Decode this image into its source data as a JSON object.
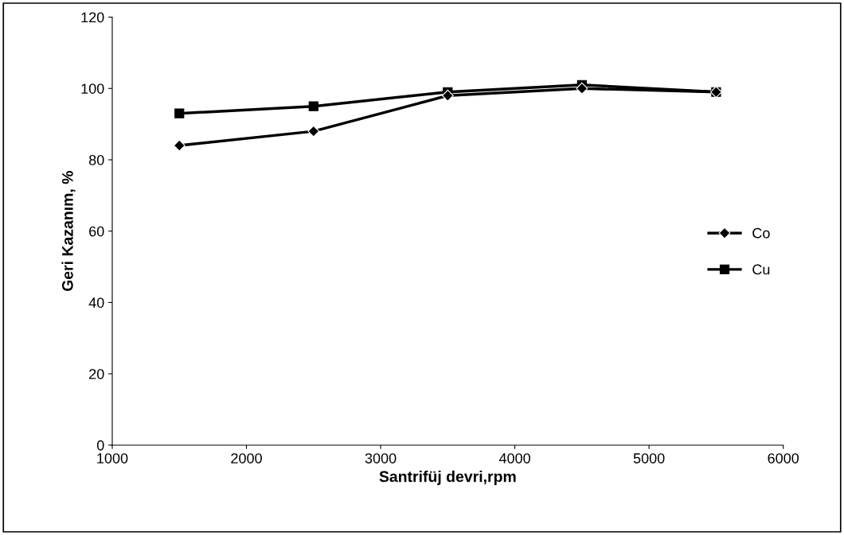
{
  "chart_data": {
    "type": "line",
    "xlabel": "Santrifüj devri,rpm",
    "ylabel": "Geri Kazanım, %",
    "x": [
      1500,
      2500,
      3500,
      4500,
      5500
    ],
    "series": [
      {
        "name": "Co",
        "color": "#000000",
        "marker": "diamond",
        "values": [
          84,
          88,
          98,
          100,
          99
        ]
      },
      {
        "name": "Cu",
        "color": "#000000",
        "marker": "square",
        "values": [
          93,
          95,
          99,
          101,
          99
        ]
      }
    ],
    "xlim": [
      1000,
      6000
    ],
    "xticks": [
      1000,
      2000,
      3000,
      4000,
      5000,
      6000
    ],
    "ylim": [
      0,
      120
    ],
    "yticks": [
      0,
      20,
      40,
      60,
      80,
      100,
      120
    ],
    "grid": false,
    "legend": "right",
    "line_style": "solid"
  }
}
